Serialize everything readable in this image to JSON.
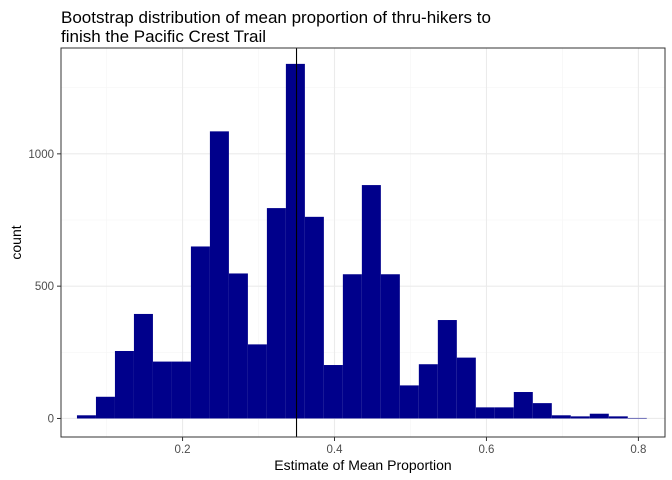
{
  "chart_data": {
    "type": "bar",
    "title_lines": [
      "Bootstrap distribution of mean proportion of thru-hikers to",
      "finish the Pacific Crest Trail"
    ],
    "xlabel": "Estimate of Mean Proportion",
    "ylabel": "count",
    "x_range": [
      0.04,
      0.835
    ],
    "y_range": [
      -70,
      1400
    ],
    "x_ticks": [
      0.2,
      0.4,
      0.6,
      0.8
    ],
    "x_tick_labels": [
      "0.2",
      "0.4",
      "0.6",
      "0.8"
    ],
    "y_ticks": [
      0,
      500,
      1000
    ],
    "y_tick_labels": [
      "0",
      "500",
      "1000"
    ],
    "bin_width": 0.025,
    "bin_centers": [
      0.0735,
      0.0985,
      0.1235,
      0.1485,
      0.1735,
      0.1985,
      0.2235,
      0.2485,
      0.2735,
      0.2985,
      0.3235,
      0.3485,
      0.3735,
      0.3985,
      0.4235,
      0.4485,
      0.4735,
      0.4985,
      0.5235,
      0.5485,
      0.5735,
      0.5985,
      0.6235,
      0.6485,
      0.6735,
      0.6985,
      0.7235,
      0.7485,
      0.7735,
      0.7985
    ],
    "counts": [
      12,
      82,
      255,
      395,
      215,
      215,
      650,
      1085,
      548,
      280,
      795,
      1340,
      762,
      202,
      545,
      882,
      545,
      125,
      205,
      372,
      230,
      42,
      42,
      100,
      58,
      12,
      8,
      18,
      8,
      2
    ],
    "vline_x": 0.35,
    "grid": true,
    "colors": {
      "bar_fill": "#00008b",
      "panel_border": "#333333",
      "grid_major": "#ebebeb",
      "grid_minor": "#f5f5f5",
      "vline": "#000000"
    }
  }
}
